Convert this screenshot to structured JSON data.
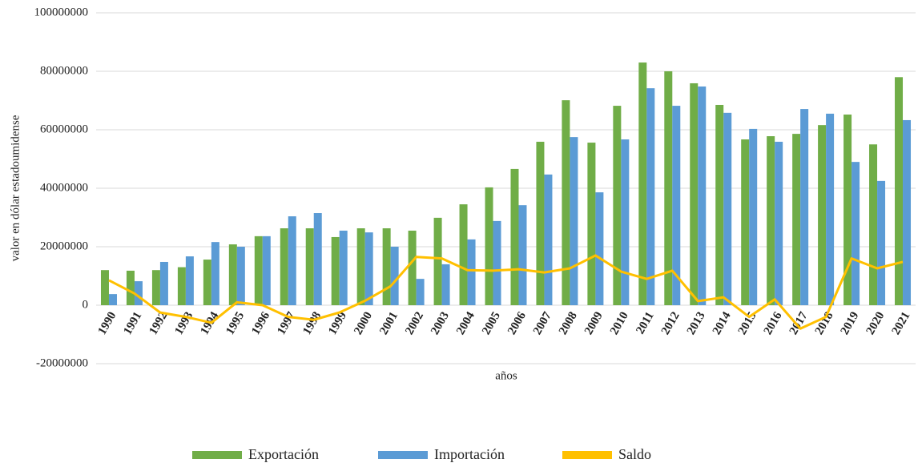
{
  "chart_data": {
    "type": "bar",
    "y_label": "valor en dólar estadoumidense",
    "x_label": "años",
    "categories": [
      "1990",
      "1991",
      "1992",
      "1993",
      "1994",
      "1995",
      "1996",
      "1997",
      "1998",
      "1999",
      "2000",
      "2001",
      "2002",
      "2003",
      "2004",
      "2005",
      "2006",
      "2007",
      "2008",
      "2009",
      "2010",
      "2011",
      "2012",
      "2013",
      "2014",
      "2015",
      "2016",
      "2017",
      "2018",
      "2019",
      "2020",
      "2021"
    ],
    "series": [
      {
        "name": "Exportación",
        "color": "#70ad47",
        "kind": "bar",
        "values": [
          12000000,
          11800000,
          12000000,
          13000000,
          15600000,
          20800000,
          23600000,
          26300000,
          26300000,
          23300000,
          26300000,
          26300000,
          25500000,
          29900000,
          34500000,
          40300000,
          46600000,
          55900000,
          70100000,
          55600000,
          68200000,
          83000000,
          80000000,
          75900000,
          68500000,
          56700000,
          57800000,
          58600000,
          61600000,
          65200000,
          55000000,
          78000000
        ]
      },
      {
        "name": "Importación",
        "color": "#5b9bd5",
        "kind": "bar",
        "values": [
          3800000,
          8200000,
          14800000,
          16700000,
          21600000,
          20000000,
          23600000,
          30400000,
          31500000,
          25500000,
          24900000,
          20000000,
          9000000,
          14000000,
          22500000,
          28800000,
          34200000,
          44700000,
          57500000,
          38600000,
          56700000,
          74200000,
          68200000,
          74800000,
          65800000,
          60300000,
          55900000,
          67100000,
          65500000,
          49000000,
          42500000,
          63300000
        ]
      },
      {
        "name": "Saldo",
        "color": "#ffc000",
        "kind": "line",
        "values": [
          8500000,
          4000000,
          -2500000,
          -4000000,
          -6000000,
          1000000,
          0,
          -4000000,
          -5000000,
          -2500000,
          1500000,
          6500000,
          16500000,
          16000000,
          12000000,
          11800000,
          12300000,
          11200000,
          12600000,
          17000000,
          11500000,
          9000000,
          11800000,
          1400000,
          2700000,
          -4000000,
          2000000,
          -8000000,
          -4000000,
          16000000,
          12600000,
          14800000
        ]
      }
    ],
    "ylim": [
      -20000000,
      100000000
    ],
    "yticks": [
      -20000000,
      0,
      20000000,
      40000000,
      60000000,
      80000000,
      100000000
    ],
    "grid": true,
    "legend": "bottom"
  }
}
